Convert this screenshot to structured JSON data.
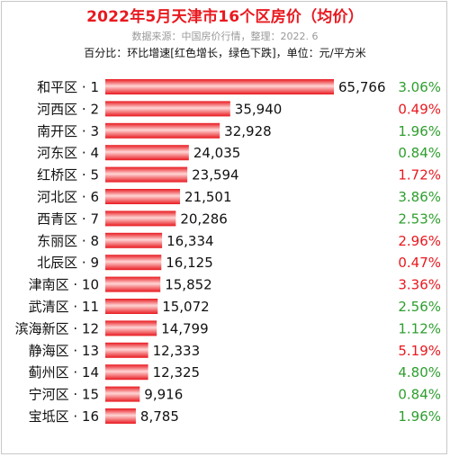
{
  "header": {
    "title": "2022年5月天津市16个区房价（均价）",
    "source": "数据来源：中国房价行情，整理：2022. 6",
    "note": "百分比：环比增速[红色增长，绿色下跌]，单位：元/平方米"
  },
  "chart_data": {
    "type": "bar",
    "orientation": "horizontal",
    "title": "2022年5月天津市16个区房价（均价）",
    "unit": "元/平方米",
    "categories": [
      "和平区 · 1",
      "河西区 · 2",
      "南开区 · 3",
      "河东区 · 4",
      "红桥区 · 5",
      "河北区 · 6",
      "西青区 · 7",
      "东丽区 · 8",
      "北辰区 · 9",
      "津南区 · 10",
      "武清区 · 11",
      "滨海新区 · 12",
      "静海区 · 13",
      "蓟州区 · 14",
      "宁河区 · 15",
      "宝坻区 · 16"
    ],
    "values": [
      65766,
      35940,
      32928,
      24035,
      23594,
      21501,
      20286,
      16334,
      16125,
      15852,
      15072,
      14799,
      12333,
      12325,
      9916,
      8785
    ],
    "value_labels": [
      "65,766",
      "35,940",
      "32,928",
      "24,035",
      "23,594",
      "21,501",
      "20,286",
      "16,334",
      "16,125",
      "15,852",
      "15,072",
      "14,799",
      "12,333",
      "12,325",
      "9,916",
      "8,785"
    ],
    "mom_change": [
      "3.06%",
      "0.49%",
      "1.96%",
      "0.84%",
      "1.72%",
      "3.86%",
      "2.53%",
      "2.96%",
      "0.47%",
      "3.36%",
      "2.56%",
      "1.12%",
      "5.19%",
      "4.80%",
      "0.84%",
      "1.96%"
    ],
    "mom_direction": [
      "down",
      "up",
      "down",
      "down",
      "up",
      "down",
      "down",
      "up",
      "up",
      "up",
      "down",
      "down",
      "up",
      "down",
      "down",
      "down"
    ],
    "xlim": [
      0,
      65766
    ],
    "grid": false,
    "legend": "none",
    "colors": {
      "bar": "#e8191f",
      "bar_highlight": "#ffd5d5",
      "up": "#e8191f",
      "down": "#2e9e2e",
      "title": "#e8191f"
    }
  }
}
